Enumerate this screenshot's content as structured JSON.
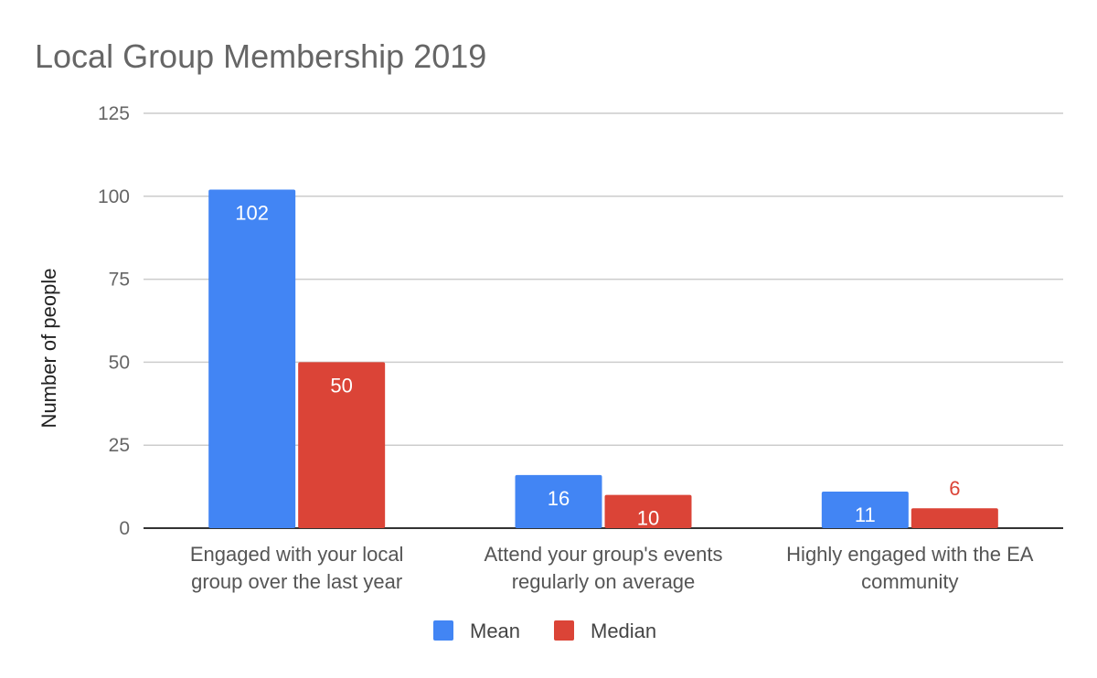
{
  "chart_data": {
    "type": "bar",
    "title": "Local Group Membership 2019",
    "xlabel": "",
    "ylabel": "Number of people",
    "ylim": [
      0,
      125
    ],
    "yticks": [
      0,
      25,
      50,
      75,
      100,
      125
    ],
    "grid": true,
    "legend_position": "bottom",
    "categories": [
      [
        "Engaged with your local",
        "group over the last year"
      ],
      [
        "Attend your group's events",
        "regularly on average"
      ],
      [
        "Highly engaged with the EA",
        "community"
      ]
    ],
    "series": [
      {
        "name": "Mean",
        "color": "#4285f4",
        "values": [
          102,
          16,
          11
        ]
      },
      {
        "name": "Median",
        "color": "#db4437",
        "values": [
          50,
          10,
          6
        ]
      }
    ]
  }
}
